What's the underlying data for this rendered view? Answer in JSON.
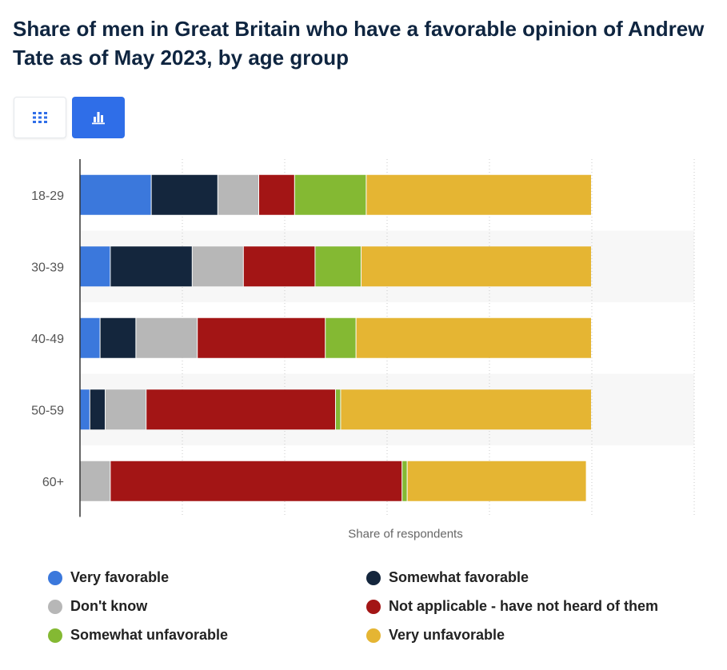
{
  "title": "Share of men in Great Britain who have a favorable opinion of Andrew Tate as of May 2023, by age group",
  "view_buttons": {
    "table_icon": "grid-icon",
    "chart_icon": "bar-chart-icon",
    "active": "chart"
  },
  "colors": {
    "accent": "#2f6ee8",
    "title": "#0f2540"
  },
  "chart_data": {
    "type": "bar",
    "orientation": "horizontal",
    "stacked": true,
    "title": "Share of men in Great Britain who have a favorable opinion of Andrew Tate as of May 2023, by age group",
    "xlabel": "Share of respondents",
    "ylabel": "",
    "categories": [
      "18-29",
      "30-39",
      "40-49",
      "50-59",
      "60+"
    ],
    "xlim": [
      0,
      120
    ],
    "grid": true,
    "legend_position": "bottom",
    "series": [
      {
        "name": "Very favorable",
        "color": "#3b78dc",
        "values": [
          14,
          6,
          4,
          2,
          0
        ]
      },
      {
        "name": "Somewhat favorable",
        "color": "#14263d",
        "values": [
          13,
          16,
          7,
          3,
          0
        ]
      },
      {
        "name": "Don't know",
        "color": "#b7b7b7",
        "values": [
          8,
          10,
          12,
          8,
          6
        ]
      },
      {
        "name": "Not applicable - have not heard of them",
        "color": "#a31515",
        "values": [
          7,
          14,
          25,
          37,
          57
        ]
      },
      {
        "name": "Somewhat unfavorable",
        "color": "#84b933",
        "values": [
          14,
          9,
          6,
          1,
          1
        ]
      },
      {
        "name": "Very unfavorable",
        "color": "#e5b533",
        "values": [
          44,
          45,
          46,
          49,
          35
        ]
      }
    ]
  }
}
